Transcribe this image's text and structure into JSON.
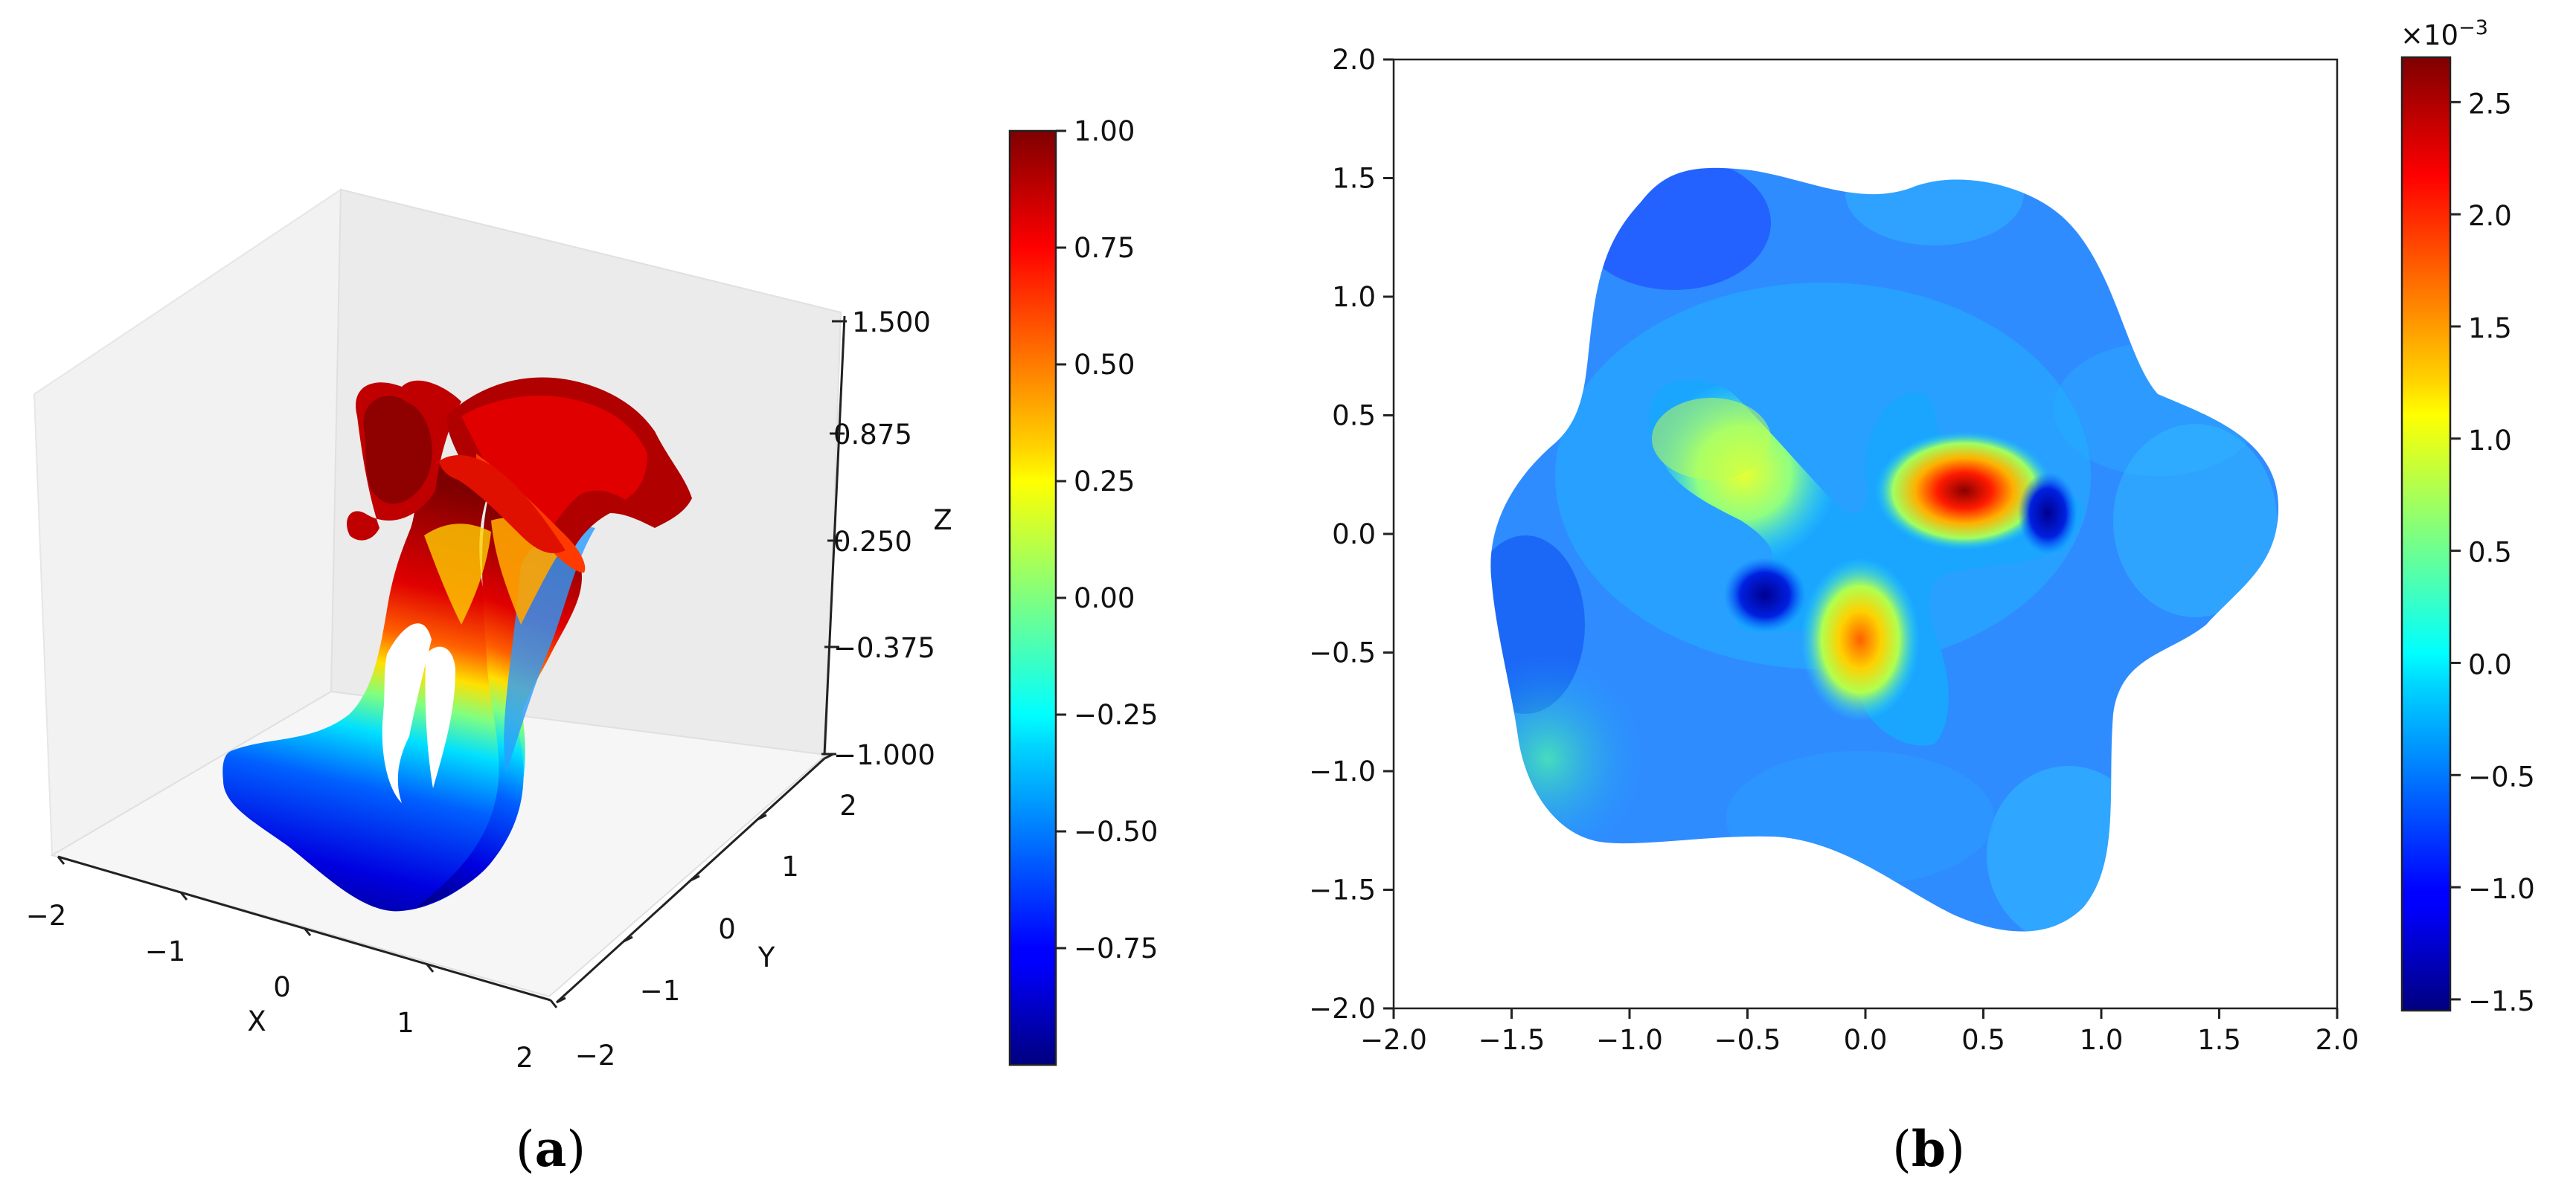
{
  "chart_data": [
    {
      "panel": "a",
      "type": "surface3d",
      "xlabel": "X",
      "ylabel": "Y",
      "zlabel": "Z",
      "x_ticks": [
        "−2",
        "−1",
        "0",
        "1",
        "2"
      ],
      "y_ticks": [
        "−2",
        "−1",
        "0",
        "1",
        "2"
      ],
      "z_ticks": [
        "1.500",
        "0.875",
        "0.250",
        "−0.375",
        "−1.000"
      ],
      "xlim": [
        -2,
        2
      ],
      "ylim": [
        -2,
        2
      ],
      "zlim": [
        -1.0,
        1.5
      ],
      "colormap": "jet",
      "colorbar": {
        "range": [
          -1.0,
          1.0
        ],
        "ticks": [
          "1.00",
          "0.75",
          "0.50",
          "0.25",
          "0.00",
          "−0.25",
          "−0.50",
          "−0.75"
        ]
      },
      "caption": "(a)"
    },
    {
      "panel": "b",
      "type": "heatmap",
      "xlim": [
        -2.0,
        2.0
      ],
      "ylim": [
        -2.0,
        2.0
      ],
      "x_ticks": [
        "−2.0",
        "−1.5",
        "−1.0",
        "−0.5",
        "0.0",
        "0.5",
        "1.0",
        "1.5",
        "2.0"
      ],
      "y_ticks": [
        "2.0",
        "1.5",
        "1.0",
        "0.5",
        "0.0",
        "−0.5",
        "−1.0",
        "−1.5",
        "−2.0"
      ],
      "colormap": "jet",
      "colorbar": {
        "multiplier_base": "×10",
        "multiplier_exp": "−3",
        "range": [
          -1.55,
          2.7
        ],
        "ticks": [
          "2.5",
          "2.0",
          "1.5",
          "1.0",
          "0.5",
          "0.0",
          "−0.5",
          "−1.0",
          "−1.5"
        ]
      },
      "caption": "(b)"
    }
  ]
}
